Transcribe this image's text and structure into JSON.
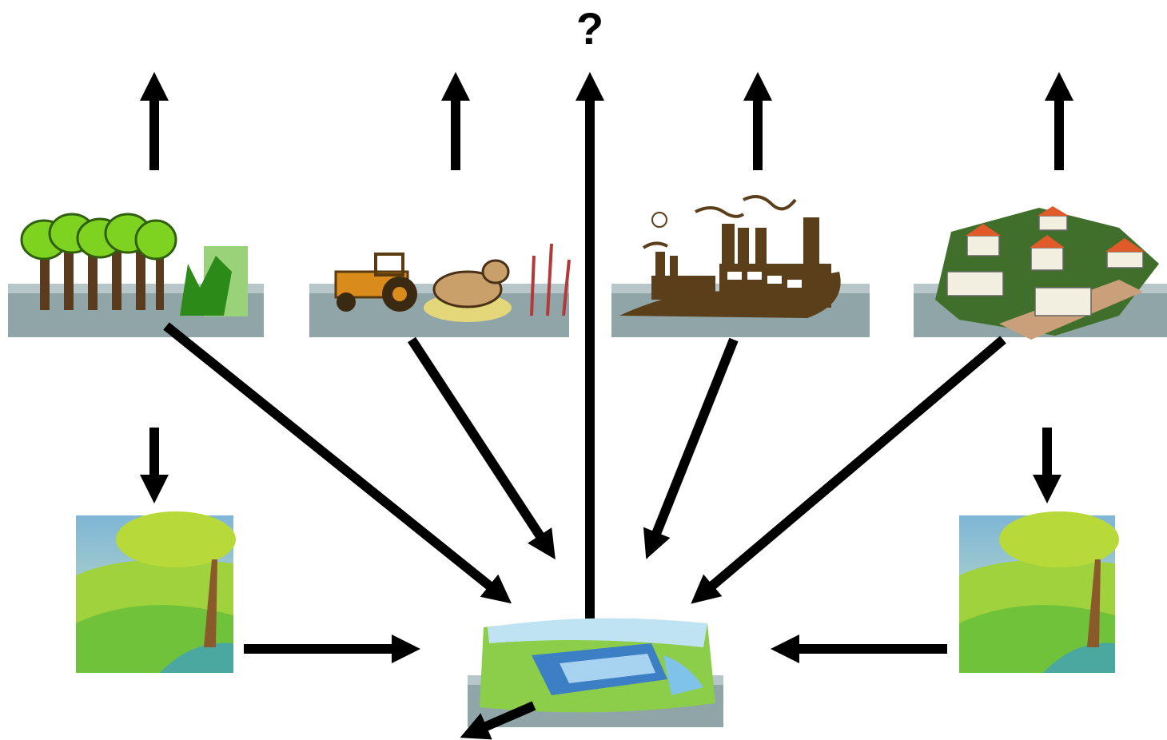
{
  "label": "?"
}
